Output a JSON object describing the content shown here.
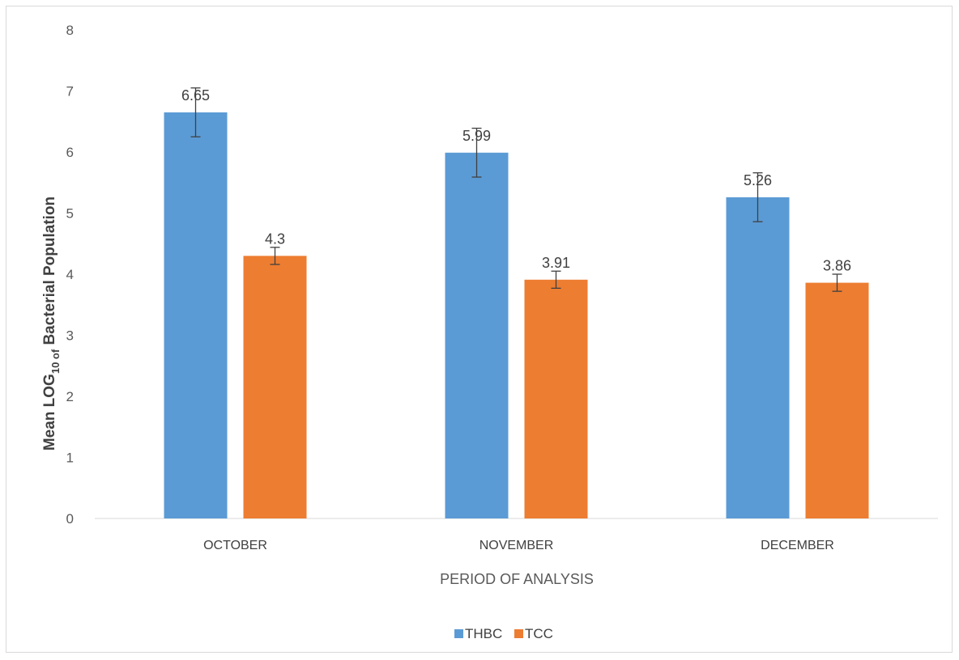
{
  "chart_data": {
    "type": "bar",
    "title": "",
    "xlabel": "PERIOD OF ANALYSIS",
    "ylabel": {
      "prefix": "Mean LOG",
      "subscript": "10 of",
      "suffix": " Bacterial Population"
    },
    "categories": [
      "OCTOBER",
      "NOVEMBER",
      "DECEMBER"
    ],
    "series": [
      {
        "name": "THBC",
        "color": "#5b9bd5",
        "values": [
          6.65,
          5.99,
          5.26
        ],
        "labels": [
          "6.65",
          "5.99",
          "5.26"
        ],
        "error": [
          0.4,
          0.4,
          0.4
        ]
      },
      {
        "name": "TCC",
        "color": "#ed7d31",
        "values": [
          4.3,
          3.91,
          3.86
        ],
        "labels": [
          "4.3",
          "3.91",
          "3.86"
        ],
        "error": [
          0.14,
          0.14,
          0.14
        ]
      }
    ],
    "ylim": [
      0,
      8
    ],
    "yticks": [
      "0",
      "1",
      "2",
      "3",
      "4",
      "5",
      "6",
      "7",
      "8"
    ],
    "grid": false,
    "legend_position": "bottom"
  }
}
